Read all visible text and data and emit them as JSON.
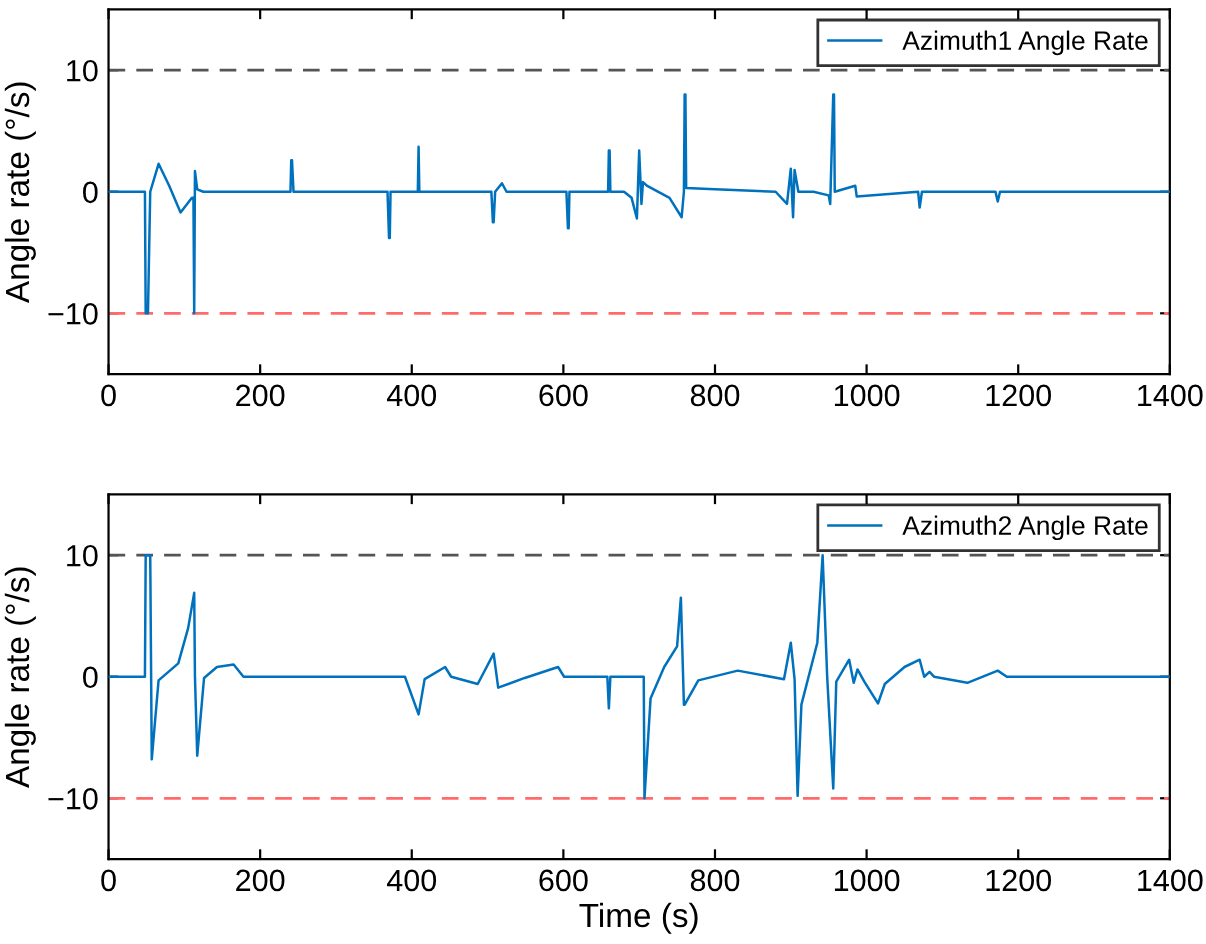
{
  "chart_data": [
    {
      "type": "line",
      "ylabel": "Angle rate (°/s)",
      "xlim": [
        0,
        1400
      ],
      "xticks": [
        0,
        200,
        400,
        600,
        800,
        1000,
        1200,
        1400
      ],
      "ylim": [
        -15,
        15
      ],
      "yticks": [
        -10,
        0,
        10
      ],
      "legend": "top right",
      "grid": false,
      "ref_lines": [
        {
          "axis": "y",
          "value": 10,
          "color": "#555555",
          "line_style": "dashed"
        },
        {
          "axis": "y",
          "value": -10,
          "color": "#ff6b6b",
          "line_style": "dashed"
        }
      ],
      "series": [
        {
          "name": "Azimuth1 Angle Rate",
          "color": "#0072bd",
          "x": [
            0,
            48,
            49,
            52,
            55,
            66,
            80,
            95,
            110,
            112,
            113,
            114,
            117,
            125,
            160,
            240,
            241,
            242,
            244,
            300,
            368,
            370,
            371,
            372,
            408,
            409,
            410,
            420,
            505,
            507,
            508,
            510,
            519,
            525,
            604,
            606,
            607,
            608,
            659,
            660,
            661,
            662,
            680,
            690,
            697,
            700,
            703,
            705,
            710,
            740,
            756,
            759,
            760,
            761,
            762,
            800,
            880,
            895,
            900,
            903,
            905,
            910,
            930,
            950,
            952,
            956,
            957,
            958,
            985,
            987,
            1068,
            1070,
            1073,
            1170,
            1173,
            1176,
            1250,
            1400
          ],
          "values": [
            0,
            0,
            -10,
            -10,
            0,
            2.3,
            0.5,
            -1.7,
            -0.5,
            -0.5,
            -10,
            1.7,
            0.2,
            0,
            0,
            0,
            2.6,
            2.6,
            0,
            0,
            0,
            -3.8,
            -3.8,
            0,
            0,
            3.7,
            0,
            0,
            0,
            -2.5,
            -2.5,
            0,
            0.7,
            0,
            0,
            -3,
            -3,
            0,
            0,
            3.4,
            3.4,
            0,
            0,
            -0.5,
            -2.2,
            3.4,
            -1,
            0.8,
            0.5,
            -0.5,
            -2.1,
            0,
            8,
            8,
            0.3,
            0.2,
            0,
            -1,
            1.9,
            -2.1,
            1.8,
            0,
            0,
            -0.3,
            -1,
            8,
            8,
            0,
            0.5,
            -0.4,
            0,
            -1.3,
            0,
            0,
            -0.8,
            0,
            0,
            0
          ]
        }
      ]
    },
    {
      "type": "line",
      "xlabel": "Time (s)",
      "ylabel": "Angle rate (°/s)",
      "xlim": [
        0,
        1400
      ],
      "xticks": [
        0,
        200,
        400,
        600,
        800,
        1000,
        1200,
        1400
      ],
      "ylim": [
        -15,
        15
      ],
      "yticks": [
        -10,
        0,
        10
      ],
      "legend": "top right",
      "grid": false,
      "ref_lines": [
        {
          "axis": "y",
          "value": 10,
          "color": "#555555",
          "line_style": "dashed"
        },
        {
          "axis": "y",
          "value": -10,
          "color": "#ff6b6b",
          "line_style": "dashed"
        }
      ],
      "series": [
        {
          "name": "Azimuth2 Angle Rate",
          "color": "#0072bd",
          "x": [
            0,
            48,
            49,
            55,
            57,
            66,
            92,
            105,
            113,
            114,
            117,
            126,
            143,
            165,
            178,
            391,
            409,
            417,
            444,
            452,
            487,
            508,
            514,
            549,
            593,
            601,
            658,
            660,
            662,
            706,
            707,
            715,
            733,
            750,
            755,
            759,
            760,
            778,
            830,
            891,
            900,
            905,
            909,
            914,
            935,
            942,
            948,
            956,
            960,
            977,
            983,
            988,
            997,
            1015,
            1024,
            1050,
            1070,
            1076,
            1083,
            1089,
            1133,
            1173,
            1185,
            1400
          ],
          "values": [
            0,
            0,
            10,
            10,
            -6.8,
            -0.3,
            1.1,
            4.0,
            6.9,
            0,
            -6.5,
            -0.1,
            0.8,
            1.0,
            0,
            0,
            -3.1,
            -0.2,
            0.8,
            0,
            -0.6,
            1.9,
            -0.9,
            -0.1,
            0.8,
            0,
            0,
            -2.6,
            0,
            0,
            -10,
            -1.8,
            0.8,
            2.5,
            6.5,
            -2.3,
            -2.3,
            -0.3,
            0.5,
            -0.2,
            2.8,
            -0.2,
            -9.8,
            -2.3,
            2.8,
            10,
            0,
            -9.2,
            -0.4,
            1.4,
            -0.5,
            0.6,
            -0.4,
            -2.2,
            -0.6,
            0.8,
            1.4,
            0,
            0.4,
            0,
            -0.5,
            0.5,
            0,
            0
          ]
        }
      ]
    }
  ]
}
